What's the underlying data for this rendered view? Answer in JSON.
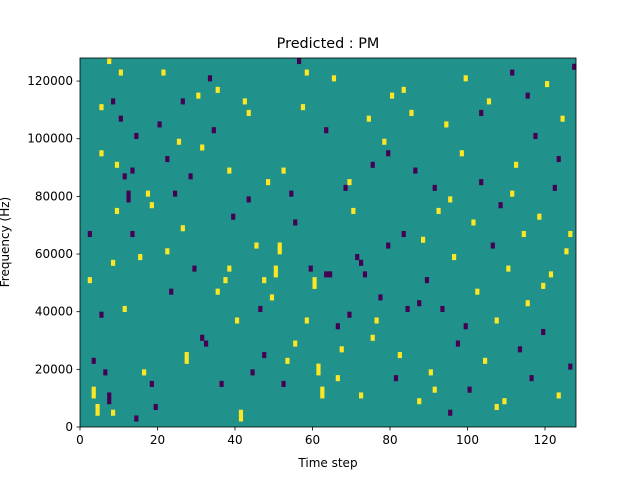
{
  "chart_data": {
    "type": "heatmap",
    "title": "Predicted : PM",
    "xlabel": "Time step",
    "ylabel": "Frequency (Hz)",
    "xlim": [
      0,
      128
    ],
    "ylim": [
      0,
      128000
    ],
    "x_ticks": [
      0,
      20,
      40,
      60,
      80,
      100,
      120
    ],
    "y_ticks": [
      0,
      20000,
      40000,
      60000,
      80000,
      100000,
      120000
    ],
    "grid": false,
    "legend": "none",
    "n_time_steps": 128,
    "n_freq_bins": 64,
    "freq_bin_hz": 2000,
    "colors": {
      "background": "#21918c",
      "positive": "#fde725",
      "negative": "#440154"
    },
    "background_value": 0,
    "cells": [
      {
        "t": 2,
        "f": 33,
        "v": -1
      },
      {
        "t": 2,
        "f": 25,
        "v": 1
      },
      {
        "t": 3,
        "f": 11,
        "v": -1
      },
      {
        "t": 3,
        "f": 6,
        "v": 1
      },
      {
        "t": 3,
        "f": 5,
        "v": 1
      },
      {
        "t": 4,
        "f": 3,
        "v": 1
      },
      {
        "t": 4,
        "f": 2,
        "v": 1
      },
      {
        "t": 5,
        "f": 55,
        "v": 1
      },
      {
        "t": 5,
        "f": 47,
        "v": 1
      },
      {
        "t": 6,
        "f": 9,
        "v": -1
      },
      {
        "t": 7,
        "f": 63,
        "v": 1
      },
      {
        "t": 7,
        "f": 5,
        "v": -1
      },
      {
        "t": 7,
        "f": 4,
        "v": -1
      },
      {
        "t": 8,
        "f": 56,
        "v": -1
      },
      {
        "t": 8,
        "f": 2,
        "v": 1
      },
      {
        "t": 9,
        "f": 45,
        "v": 1
      },
      {
        "t": 9,
        "f": 37,
        "v": 1
      },
      {
        "t": 10,
        "f": 61,
        "v": 1
      },
      {
        "t": 10,
        "f": 53,
        "v": -1
      },
      {
        "t": 11,
        "f": 43,
        "v": -1
      },
      {
        "t": 11,
        "f": 20,
        "v": 1
      },
      {
        "t": 12,
        "f": 39,
        "v": -1
      },
      {
        "t": 12,
        "f": 40,
        "v": -1
      },
      {
        "t": 13,
        "f": 33,
        "v": -1
      },
      {
        "t": 13,
        "f": 44,
        "v": -1
      },
      {
        "t": 14,
        "f": 1,
        "v": -1
      },
      {
        "t": 15,
        "f": 29,
        "v": 1
      },
      {
        "t": 16,
        "f": 9,
        "v": 1
      },
      {
        "t": 17,
        "f": 40,
        "v": 1
      },
      {
        "t": 18,
        "f": 38,
        "v": 1
      },
      {
        "t": 19,
        "f": 3,
        "v": -1
      },
      {
        "t": 20,
        "f": 52,
        "v": -1
      },
      {
        "t": 21,
        "f": 61,
        "v": 1
      },
      {
        "t": 22,
        "f": 30,
        "v": 1
      },
      {
        "t": 23,
        "f": 23,
        "v": -1
      },
      {
        "t": 24,
        "f": 40,
        "v": -1
      },
      {
        "t": 25,
        "f": 49,
        "v": 1
      },
      {
        "t": 26,
        "f": 56,
        "v": -1
      },
      {
        "t": 27,
        "f": 12,
        "v": 1
      },
      {
        "t": 27,
        "f": 11,
        "v": 1
      },
      {
        "t": 28,
        "f": 43,
        "v": -1
      },
      {
        "t": 29,
        "f": 27,
        "v": -1
      },
      {
        "t": 30,
        "f": 57,
        "v": 1
      },
      {
        "t": 31,
        "f": 48,
        "v": 1
      },
      {
        "t": 32,
        "f": 14,
        "v": -1
      },
      {
        "t": 33,
        "f": 60,
        "v": -1
      },
      {
        "t": 34,
        "f": 51,
        "v": -1
      },
      {
        "t": 35,
        "f": 23,
        "v": 1
      },
      {
        "t": 36,
        "f": 7,
        "v": -1
      },
      {
        "t": 37,
        "f": 25,
        "v": 1
      },
      {
        "t": 38,
        "f": 44,
        "v": 1
      },
      {
        "t": 39,
        "f": 36,
        "v": -1
      },
      {
        "t": 40,
        "f": 18,
        "v": 1
      },
      {
        "t": 41,
        "f": 2,
        "v": 1
      },
      {
        "t": 41,
        "f": 1,
        "v": 1
      },
      {
        "t": 42,
        "f": 56,
        "v": 1
      },
      {
        "t": 43,
        "f": 54,
        "v": 1
      },
      {
        "t": 44,
        "f": 9,
        "v": -1
      },
      {
        "t": 45,
        "f": 31,
        "v": 1
      },
      {
        "t": 46,
        "f": 20,
        "v": -1
      },
      {
        "t": 47,
        "f": 25,
        "v": 1
      },
      {
        "t": 48,
        "f": 42,
        "v": 1
      },
      {
        "t": 49,
        "f": 22,
        "v": 1
      },
      {
        "t": 50,
        "f": 27,
        "v": 1
      },
      {
        "t": 50,
        "f": 26,
        "v": 1
      },
      {
        "t": 51,
        "f": 31,
        "v": 1
      },
      {
        "t": 51,
        "f": 30,
        "v": 1
      },
      {
        "t": 52,
        "f": 7,
        "v": -1
      },
      {
        "t": 53,
        "f": 11,
        "v": 1
      },
      {
        "t": 54,
        "f": 40,
        "v": -1
      },
      {
        "t": 55,
        "f": 14,
        "v": 1
      },
      {
        "t": 56,
        "f": 63,
        "v": -1
      },
      {
        "t": 57,
        "f": 55,
        "v": 1
      },
      {
        "t": 58,
        "f": 61,
        "v": 1
      },
      {
        "t": 59,
        "f": 27,
        "v": -1
      },
      {
        "t": 60,
        "f": 25,
        "v": 1
      },
      {
        "t": 60,
        "f": 24,
        "v": 1
      },
      {
        "t": 61,
        "f": 10,
        "v": 1
      },
      {
        "t": 61,
        "f": 9,
        "v": 1
      },
      {
        "t": 62,
        "f": 6,
        "v": 1
      },
      {
        "t": 62,
        "f": 5,
        "v": 1
      },
      {
        "t": 63,
        "f": 26,
        "v": -1
      },
      {
        "t": 64,
        "f": 26,
        "v": -1
      },
      {
        "t": 65,
        "f": 60,
        "v": 1
      },
      {
        "t": 66,
        "f": 17,
        "v": -1
      },
      {
        "t": 67,
        "f": 13,
        "v": 1
      },
      {
        "t": 68,
        "f": 41,
        "v": -1
      },
      {
        "t": 69,
        "f": 19,
        "v": -1
      },
      {
        "t": 70,
        "f": 37,
        "v": 1
      },
      {
        "t": 71,
        "f": 29,
        "v": -1
      },
      {
        "t": 72,
        "f": 5,
        "v": 1
      },
      {
        "t": 73,
        "f": 26,
        "v": -1
      },
      {
        "t": 74,
        "f": 53,
        "v": 1
      },
      {
        "t": 75,
        "f": 45,
        "v": -1
      },
      {
        "t": 76,
        "f": 18,
        "v": 1
      },
      {
        "t": 77,
        "f": 22,
        "v": -1
      },
      {
        "t": 78,
        "f": 49,
        "v": 1
      },
      {
        "t": 79,
        "f": 31,
        "v": -1
      },
      {
        "t": 80,
        "f": 57,
        "v": 1
      },
      {
        "t": 81,
        "f": 8,
        "v": -1
      },
      {
        "t": 82,
        "f": 12,
        "v": 1
      },
      {
        "t": 83,
        "f": 33,
        "v": -1
      },
      {
        "t": 84,
        "f": 20,
        "v": -1
      },
      {
        "t": 85,
        "f": 54,
        "v": 1
      },
      {
        "t": 86,
        "f": 44,
        "v": -1
      },
      {
        "t": 87,
        "f": 4,
        "v": 1
      },
      {
        "t": 88,
        "f": 32,
        "v": 1
      },
      {
        "t": 89,
        "f": 25,
        "v": -1
      },
      {
        "t": 90,
        "f": 9,
        "v": 1
      },
      {
        "t": 91,
        "f": 41,
        "v": -1
      },
      {
        "t": 92,
        "f": 37,
        "v": 1
      },
      {
        "t": 93,
        "f": 20,
        "v": -1
      },
      {
        "t": 94,
        "f": 52,
        "v": 1
      },
      {
        "t": 95,
        "f": 2,
        "v": -1
      },
      {
        "t": 96,
        "f": 29,
        "v": 1
      },
      {
        "t": 97,
        "f": 14,
        "v": -1
      },
      {
        "t": 98,
        "f": 47,
        "v": 1
      },
      {
        "t": 99,
        "f": 60,
        "v": 1
      },
      {
        "t": 100,
        "f": 6,
        "v": -1
      },
      {
        "t": 101,
        "f": 35,
        "v": 1
      },
      {
        "t": 102,
        "f": 23,
        "v": 1
      },
      {
        "t": 103,
        "f": 42,
        "v": -1
      },
      {
        "t": 104,
        "f": 11,
        "v": 1
      },
      {
        "t": 105,
        "f": 56,
        "v": 1
      },
      {
        "t": 106,
        "f": 31,
        "v": -1
      },
      {
        "t": 107,
        "f": 18,
        "v": 1
      },
      {
        "t": 108,
        "f": 38,
        "v": -1
      },
      {
        "t": 109,
        "f": 4,
        "v": 1
      },
      {
        "t": 110,
        "f": 27,
        "v": 1
      },
      {
        "t": 111,
        "f": 61,
        "v": -1
      },
      {
        "t": 112,
        "f": 45,
        "v": 1
      },
      {
        "t": 113,
        "f": 13,
        "v": -1
      },
      {
        "t": 114,
        "f": 33,
        "v": 1
      },
      {
        "t": 115,
        "f": 21,
        "v": 1
      },
      {
        "t": 116,
        "f": 8,
        "v": -1
      },
      {
        "t": 117,
        "f": 50,
        "v": -1
      },
      {
        "t": 118,
        "f": 36,
        "v": 1
      },
      {
        "t": 119,
        "f": 16,
        "v": -1
      },
      {
        "t": 120,
        "f": 59,
        "v": 1
      },
      {
        "t": 121,
        "f": 26,
        "v": 1
      },
      {
        "t": 122,
        "f": 41,
        "v": -1
      },
      {
        "t": 123,
        "f": 5,
        "v": 1
      },
      {
        "t": 124,
        "f": 53,
        "v": 1
      },
      {
        "t": 125,
        "f": 30,
        "v": 1
      },
      {
        "t": 126,
        "f": 10,
        "v": -1
      },
      {
        "t": 127,
        "f": 62,
        "v": -1
      },
      {
        "t": 5,
        "f": 19,
        "v": -1
      },
      {
        "t": 8,
        "f": 28,
        "v": 1
      },
      {
        "t": 14,
        "f": 50,
        "v": -1
      },
      {
        "t": 18,
        "f": 7,
        "v": -1
      },
      {
        "t": 22,
        "f": 46,
        "v": -1
      },
      {
        "t": 26,
        "f": 34,
        "v": 1
      },
      {
        "t": 31,
        "f": 15,
        "v": -1
      },
      {
        "t": 35,
        "f": 58,
        "v": 1
      },
      {
        "t": 38,
        "f": 27,
        "v": 1
      },
      {
        "t": 43,
        "f": 39,
        "v": -1
      },
      {
        "t": 47,
        "f": 12,
        "v": -1
      },
      {
        "t": 52,
        "f": 44,
        "v": 1
      },
      {
        "t": 55,
        "f": 35,
        "v": -1
      },
      {
        "t": 58,
        "f": 18,
        "v": 1
      },
      {
        "t": 63,
        "f": 51,
        "v": -1
      },
      {
        "t": 66,
        "f": 8,
        "v": 1
      },
      {
        "t": 69,
        "f": 42,
        "v": 1
      },
      {
        "t": 72,
        "f": 28,
        "v": -1
      },
      {
        "t": 75,
        "f": 15,
        "v": 1
      },
      {
        "t": 79,
        "f": 47,
        "v": -1
      },
      {
        "t": 83,
        "f": 58,
        "v": 1
      },
      {
        "t": 87,
        "f": 21,
        "v": -1
      },
      {
        "t": 91,
        "f": 6,
        "v": 1
      },
      {
        "t": 95,
        "f": 39,
        "v": 1
      },
      {
        "t": 99,
        "f": 17,
        "v": -1
      },
      {
        "t": 103,
        "f": 54,
        "v": -1
      },
      {
        "t": 107,
        "f": 3,
        "v": 1
      },
      {
        "t": 111,
        "f": 40,
        "v": 1
      },
      {
        "t": 115,
        "f": 57,
        "v": -1
      },
      {
        "t": 119,
        "f": 24,
        "v": 1
      },
      {
        "t": 123,
        "f": 46,
        "v": -1
      },
      {
        "t": 126,
        "f": 33,
        "v": 1
      }
    ]
  }
}
